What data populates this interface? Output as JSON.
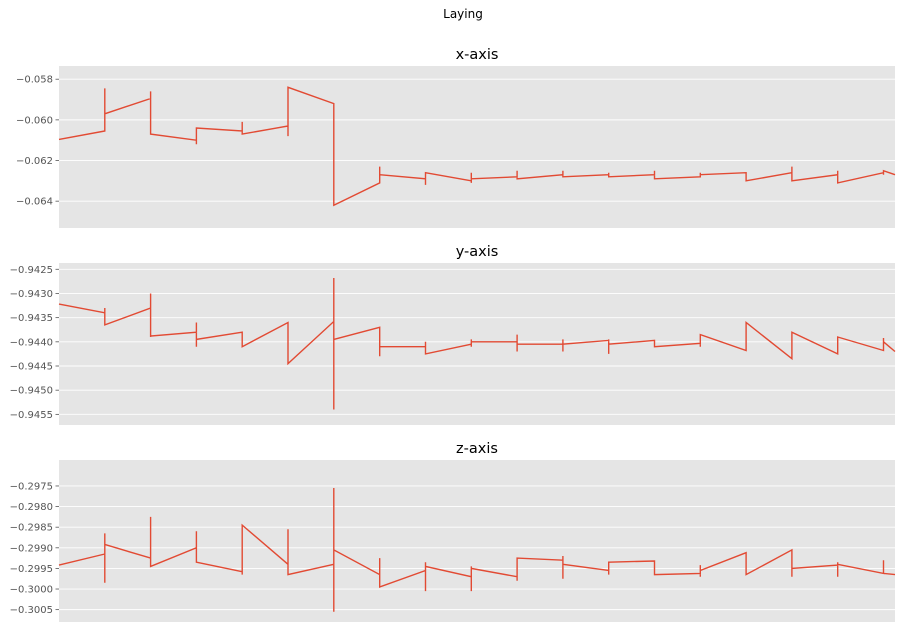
{
  "figure": {
    "suptitle": "Laying",
    "background": "#ffffff",
    "panel_background": "#e5e5e5",
    "grid_color": "#ffffff",
    "line_color": "#e24a33"
  },
  "chart_data": [
    {
      "type": "line",
      "title": "x-axis",
      "xlabel": "",
      "ylabel": "",
      "grid": true,
      "xlim": [
        0,
        73
      ],
      "ylim": [
        -0.06532,
        -0.05735
      ],
      "yticks": [
        -0.058,
        -0.06,
        -0.062,
        -0.064
      ],
      "ytick_labels": [
        "−0.058",
        "−0.060",
        "−0.062",
        "−0.064"
      ],
      "x": [
        0,
        4,
        4,
        4,
        4,
        8,
        8,
        8,
        8,
        12,
        12,
        12,
        12,
        16,
        16,
        16,
        16,
        20,
        20,
        20,
        20,
        24,
        24,
        24,
        24,
        28,
        28,
        28,
        28,
        32,
        32,
        32,
        32,
        36,
        36,
        36,
        36,
        40,
        40,
        40,
        40,
        44,
        44,
        44,
        44,
        48,
        48,
        48,
        48,
        52,
        52,
        52,
        52,
        56,
        56,
        56,
        56,
        60,
        60,
        60,
        60,
        64,
        64,
        64,
        64,
        68,
        68,
        68,
        68,
        72,
        72,
        72,
        72,
        73
      ],
      "y": [
        -0.06096,
        -0.06055,
        -0.05845,
        -0.06055,
        -0.0597,
        -0.05895,
        -0.0586,
        -0.0607,
        -0.0607,
        -0.061,
        -0.0612,
        -0.0604,
        -0.0604,
        -0.06055,
        -0.0601,
        -0.0607,
        -0.0607,
        -0.0603,
        -0.0608,
        -0.0584,
        -0.0584,
        -0.0592,
        -0.0642,
        -0.0642,
        -0.0642,
        -0.0631,
        -0.0623,
        -0.0627,
        -0.0627,
        -0.0629,
        -0.0632,
        -0.0626,
        -0.0626,
        -0.063,
        -0.0631,
        -0.0626,
        -0.0629,
        -0.0628,
        -0.0625,
        -0.0629,
        -0.0629,
        -0.0627,
        -0.0625,
        -0.0628,
        -0.0628,
        -0.0627,
        -0.0626,
        -0.0628,
        -0.0628,
        -0.0627,
        -0.0625,
        -0.0629,
        -0.0629,
        -0.0628,
        -0.0626,
        -0.0627,
        -0.0627,
        -0.0626,
        -0.0626,
        -0.063,
        -0.063,
        -0.0626,
        -0.0623,
        -0.063,
        -0.063,
        -0.0627,
        -0.0625,
        -0.0631,
        -0.0631,
        -0.0626,
        -0.0626,
        -0.0627,
        -0.0625,
        -0.0627
      ]
    },
    {
      "type": "line",
      "title": "y-axis",
      "xlabel": "",
      "ylabel": "",
      "grid": true,
      "xlim": [
        0,
        73
      ],
      "ylim": [
        -0.94572,
        -0.94237
      ],
      "yticks": [
        -0.9425,
        -0.943,
        -0.9435,
        -0.944,
        -0.9445,
        -0.945,
        -0.9455
      ],
      "ytick_labels": [
        "−0.9425",
        "−0.9430",
        "−0.9435",
        "−0.9440",
        "−0.9445",
        "−0.9450",
        "−0.9455"
      ],
      "x": [
        0,
        4,
        4,
        4,
        4,
        8,
        8,
        8,
        8,
        12,
        12,
        12,
        12,
        16,
        16,
        16,
        16,
        20,
        20,
        20,
        20,
        24,
        24,
        24,
        24,
        28,
        28,
        28,
        28,
        32,
        32,
        32,
        32,
        36,
        36,
        36,
        36,
        40,
        40,
        40,
        40,
        44,
        44,
        44,
        44,
        48,
        48,
        48,
        48,
        52,
        52,
        52,
        52,
        56,
        56,
        56,
        56,
        60,
        60,
        60,
        60,
        64,
        64,
        64,
        64,
        68,
        68,
        68,
        68,
        72,
        72,
        72,
        72,
        73
      ],
      "y": [
        -0.94322,
        -0.9434,
        -0.9433,
        -0.94365,
        -0.94365,
        -0.9433,
        -0.943,
        -0.9439,
        -0.94388,
        -0.9438,
        -0.9436,
        -0.9441,
        -0.94395,
        -0.9438,
        -0.94407,
        -0.94395,
        -0.9441,
        -0.9436,
        -0.94445,
        -0.94445,
        -0.94445,
        -0.94358,
        -0.94268,
        -0.9454,
        -0.94395,
        -0.9437,
        -0.9442,
        -0.9443,
        -0.9441,
        -0.9441,
        -0.94425,
        -0.944,
        -0.94425,
        -0.94405,
        -0.94395,
        -0.9441,
        -0.944,
        -0.944,
        -0.94385,
        -0.9442,
        -0.94405,
        -0.94405,
        -0.94395,
        -0.9442,
        -0.94405,
        -0.94397,
        -0.94395,
        -0.94425,
        -0.94405,
        -0.94397,
        -0.94397,
        -0.9441,
        -0.9441,
        -0.94403,
        -0.944,
        -0.9441,
        -0.94385,
        -0.94418,
        -0.94418,
        -0.9439,
        -0.9436,
        -0.94435,
        -0.94393,
        -0.94397,
        -0.9438,
        -0.94425,
        -0.94405,
        -0.94412,
        -0.9439,
        -0.94418,
        -0.94392,
        -0.94397,
        -0.944,
        -0.9442
      ]
    },
    {
      "type": "line",
      "title": "z-axis",
      "xlabel": "",
      "ylabel": "",
      "grid": true,
      "xlim": [
        0,
        73
      ],
      "ylim": [
        -0.3008,
        -0.29687
      ],
      "yticks": [
        -0.2975,
        -0.298,
        -0.2985,
        -0.299,
        -0.2995,
        -0.3,
        -0.3005
      ],
      "ytick_labels": [
        "−0.2975",
        "−0.2980",
        "−0.2985",
        "−0.2990",
        "−0.2995",
        "−0.3000",
        "−0.3005"
      ],
      "x": [
        0,
        4,
        4,
        4,
        4,
        8,
        8,
        8,
        8,
        12,
        12,
        12,
        12,
        16,
        16,
        16,
        16,
        20,
        20,
        20,
        20,
        24,
        24,
        24,
        24,
        28,
        28,
        28,
        28,
        32,
        32,
        32,
        32,
        36,
        36,
        36,
        36,
        40,
        40,
        40,
        40,
        44,
        44,
        44,
        44,
        48,
        48,
        48,
        48,
        52,
        52,
        52,
        52,
        56,
        56,
        56,
        56,
        60,
        60,
        60,
        60,
        64,
        64,
        64,
        64,
        68,
        68,
        68,
        68,
        72,
        72,
        72,
        72,
        73
      ],
      "y": [
        -0.29942,
        -0.29915,
        -0.29865,
        -0.29985,
        -0.29892,
        -0.29925,
        -0.29825,
        -0.29945,
        -0.29945,
        -0.299,
        -0.2986,
        -0.29935,
        -0.29935,
        -0.29958,
        -0.29965,
        -0.29845,
        -0.29845,
        -0.2994,
        -0.29855,
        -0.29965,
        -0.29965,
        -0.2994,
        -0.29755,
        -0.30055,
        -0.29905,
        -0.29965,
        -0.29925,
        -0.29995,
        -0.29995,
        -0.29955,
        -0.29935,
        -0.30005,
        -0.29945,
        -0.2997,
        -0.29945,
        -0.30005,
        -0.2995,
        -0.2997,
        -0.2998,
        -0.29925,
        -0.29925,
        -0.2993,
        -0.2992,
        -0.29975,
        -0.2994,
        -0.29955,
        -0.29935,
        -0.29965,
        -0.29935,
        -0.29932,
        -0.29932,
        -0.29965,
        -0.29965,
        -0.29962,
        -0.29942,
        -0.2997,
        -0.29955,
        -0.29912,
        -0.29912,
        -0.29965,
        -0.29965,
        -0.29905,
        -0.29905,
        -0.2997,
        -0.2995,
        -0.29942,
        -0.29935,
        -0.2997,
        -0.2994,
        -0.29962,
        -0.29962,
        -0.2993,
        -0.29962,
        -0.29965
      ]
    }
  ]
}
